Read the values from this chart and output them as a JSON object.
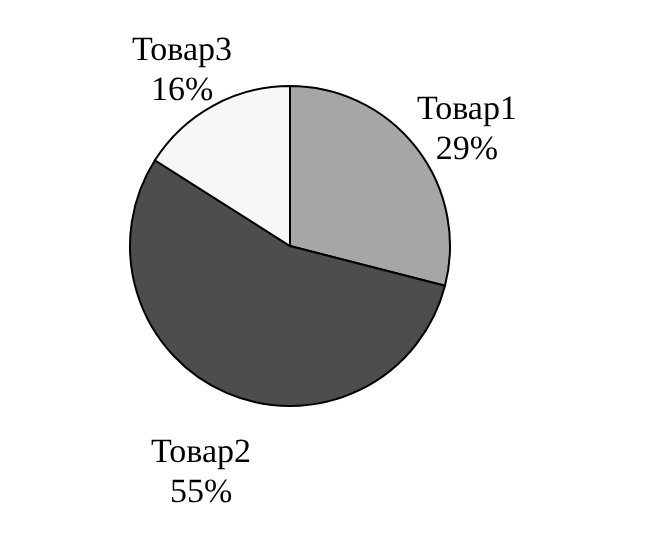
{
  "chart_data": {
    "type": "pie",
    "categories": [
      "Товар1",
      "Товар2",
      "Товар3"
    ],
    "values": [
      29,
      55,
      16
    ],
    "value_labels": [
      "29%",
      "55%",
      "16%"
    ],
    "colors": [
      "#a6a6a6",
      "#4d4d4d",
      "#f7f7f7"
    ]
  }
}
